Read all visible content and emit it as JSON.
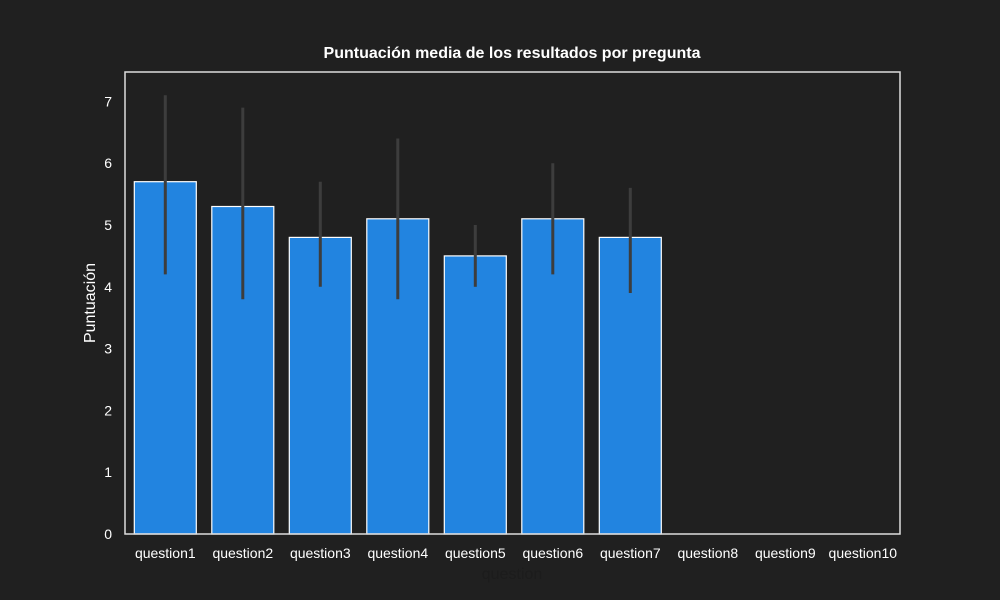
{
  "colors": {
    "background": "#202020",
    "text": "#ffffff",
    "bar_fill": "#2284e0",
    "bar_edge": "#ffffff",
    "error_bar": "#3d3d3d",
    "frame": "#dddddd",
    "xlabel_color": "#1c1c1c"
  },
  "chart_data": {
    "type": "bar",
    "title": "Puntuación media de los resultados por pregunta",
    "xlabel": "question",
    "ylabel": "Puntuación",
    "categories": [
      "question1",
      "question2",
      "question3",
      "question4",
      "question5",
      "question6",
      "question7",
      "question8",
      "question9",
      "question10"
    ],
    "values": [
      5.7,
      5.3,
      4.8,
      5.1,
      4.5,
      5.1,
      4.8,
      null,
      null,
      null
    ],
    "error_low": [
      4.2,
      3.8,
      4.0,
      3.8,
      4.0,
      4.2,
      3.9,
      null,
      null,
      null
    ],
    "error_high": [
      7.1,
      6.9,
      5.7,
      6.4,
      5.0,
      6.0,
      5.6,
      null,
      null,
      null
    ],
    "ylim": [
      0,
      7.5
    ],
    "yticks": [
      0,
      1,
      2,
      3,
      4,
      5,
      6,
      7
    ],
    "grid": false,
    "legend": "none"
  }
}
